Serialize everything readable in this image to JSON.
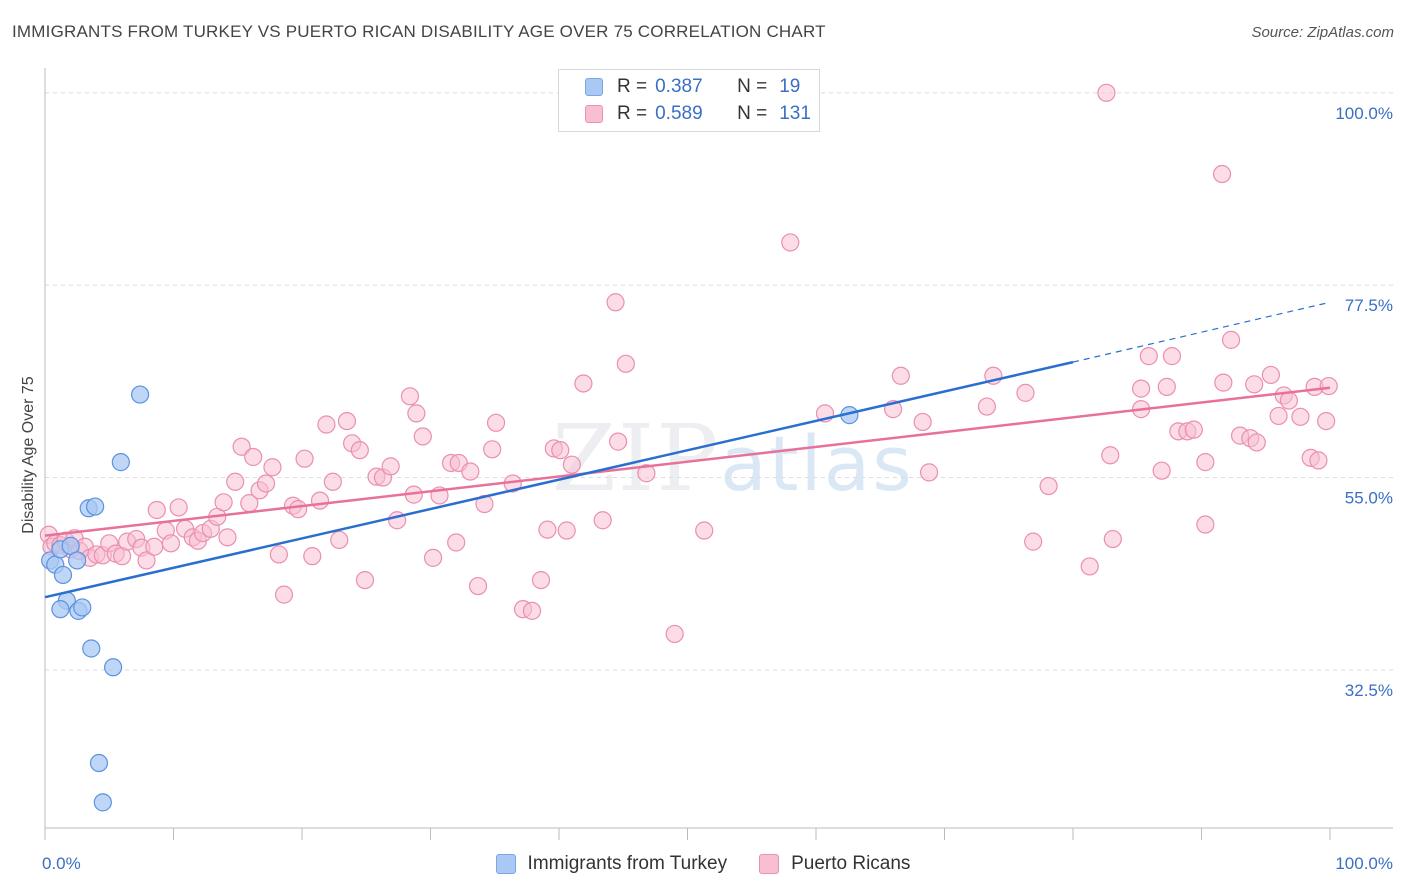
{
  "title": "IMMIGRANTS FROM TURKEY VS PUERTO RICAN DISABILITY AGE OVER 75 CORRELATION CHART",
  "source": "Source: ZipAtlas.com",
  "watermark": {
    "zip": "ZIP",
    "atlas": "atlas"
  },
  "legend": {
    "rows": [
      {
        "r_label": "R =",
        "r_value": "0.387",
        "n_label": "N =",
        "n_value": "19",
        "color": "#a9c8f3",
        "border": "#7aa6e6"
      },
      {
        "r_label": "R =",
        "r_value": "0.589",
        "n_label": "N =",
        "n_value": "131",
        "color": "#f8bfd3",
        "border": "#ef90b1"
      }
    ]
  },
  "bottom_legend": {
    "series1": "Immigrants from Turkey",
    "series2": "Puerto Ricans"
  },
  "colors": {
    "turkey_fill": "#a9c8f3",
    "turkey_stroke": "#5b93e0",
    "turkey_line": "#2a6fcf",
    "pr_fill": "#f8bfd3",
    "pr_stroke": "#ea8fb0",
    "pr_line": "#e8719a",
    "tick_label": "#3a6fc4",
    "grid": "#dcdcdc"
  },
  "chart_data": {
    "type": "scatter",
    "title": "IMMIGRANTS FROM TURKEY VS PUERTO RICAN DISABILITY AGE OVER 75 CORRELATION CHART",
    "xlabel": "",
    "ylabel": "Disability Age Over 75",
    "xlim": [
      0,
      100
    ],
    "ylim": [
      14,
      101.5
    ],
    "x_tick_labels": [
      {
        "value": 0,
        "label": "0.0%"
      },
      {
        "value": 100,
        "label": "100.0%"
      }
    ],
    "y_ticks": [
      {
        "value": 32.5,
        "label": "32.5%"
      },
      {
        "value": 55.0,
        "label": "55.0%"
      },
      {
        "value": 77.5,
        "label": "77.5%"
      },
      {
        "value": 100.0,
        "label": "100.0%"
      }
    ],
    "grid": true,
    "series": [
      {
        "name": "Immigrants from Turkey",
        "points": [
          [
            0.4,
            45.3
          ],
          [
            0.8,
            44.8
          ],
          [
            1.2,
            46.6
          ],
          [
            1.4,
            43.6
          ],
          [
            1.7,
            40.6
          ],
          [
            1.2,
            39.6
          ],
          [
            2.0,
            47.0
          ],
          [
            2.5,
            45.3
          ],
          [
            2.6,
            39.4
          ],
          [
            2.9,
            39.8
          ],
          [
            3.4,
            51.4
          ],
          [
            3.9,
            51.6
          ],
          [
            3.6,
            35.0
          ],
          [
            5.3,
            32.8
          ],
          [
            4.2,
            21.6
          ],
          [
            4.5,
            17.0
          ],
          [
            7.4,
            64.7
          ],
          [
            5.9,
            56.8
          ],
          [
            62.6,
            62.3
          ]
        ],
        "trend": {
          "x0": 0,
          "y0": 41.0,
          "x1": 80.0,
          "y1": 68.5,
          "dashed_to_x": 100,
          "dashed_to_y": 75.5
        }
      },
      {
        "name": "Puerto Ricans",
        "points": [
          [
            0.3,
            48.3
          ],
          [
            0.5,
            46.9
          ],
          [
            0.8,
            47.3
          ],
          [
            1.2,
            47.1
          ],
          [
            1.6,
            47.6
          ],
          [
            2.0,
            46.6
          ],
          [
            2.3,
            47.9
          ],
          [
            2.7,
            46.4
          ],
          [
            3.1,
            46.9
          ],
          [
            3.5,
            45.6
          ],
          [
            4.0,
            46.0
          ],
          [
            4.5,
            45.9
          ],
          [
            5.0,
            47.3
          ],
          [
            5.5,
            46.1
          ],
          [
            6.0,
            45.8
          ],
          [
            6.4,
            47.5
          ],
          [
            7.1,
            47.8
          ],
          [
            7.5,
            46.8
          ],
          [
            7.9,
            45.3
          ],
          [
            8.5,
            46.9
          ],
          [
            8.7,
            51.2
          ],
          [
            9.4,
            48.8
          ],
          [
            9.8,
            47.3
          ],
          [
            10.4,
            51.5
          ],
          [
            10.9,
            49.0
          ],
          [
            11.5,
            48.0
          ],
          [
            11.9,
            47.6
          ],
          [
            12.3,
            48.5
          ],
          [
            12.9,
            49.0
          ],
          [
            13.4,
            50.4
          ],
          [
            13.9,
            52.1
          ],
          [
            14.2,
            48.0
          ],
          [
            14.8,
            54.5
          ],
          [
            15.3,
            58.6
          ],
          [
            15.9,
            52.0
          ],
          [
            16.2,
            57.4
          ],
          [
            16.7,
            53.5
          ],
          [
            17.2,
            54.3
          ],
          [
            17.7,
            56.2
          ],
          [
            18.2,
            46.0
          ],
          [
            18.6,
            41.3
          ],
          [
            19.3,
            51.7
          ],
          [
            19.7,
            51.3
          ],
          [
            20.2,
            57.2
          ],
          [
            20.8,
            45.8
          ],
          [
            21.4,
            52.3
          ],
          [
            21.9,
            61.2
          ],
          [
            22.4,
            54.5
          ],
          [
            22.9,
            47.7
          ],
          [
            23.5,
            61.6
          ],
          [
            23.9,
            59.0
          ],
          [
            24.5,
            58.2
          ],
          [
            24.9,
            43.0
          ],
          [
            25.8,
            55.1
          ],
          [
            26.3,
            55.0
          ],
          [
            26.9,
            56.3
          ],
          [
            27.4,
            50.0
          ],
          [
            28.4,
            64.5
          ],
          [
            28.7,
            53.0
          ],
          [
            28.9,
            62.5
          ],
          [
            29.4,
            59.8
          ],
          [
            30.2,
            45.6
          ],
          [
            30.7,
            52.9
          ],
          [
            31.6,
            56.7
          ],
          [
            32.0,
            47.4
          ],
          [
            32.2,
            56.7
          ],
          [
            33.1,
            55.7
          ],
          [
            33.7,
            42.3
          ],
          [
            34.2,
            51.9
          ],
          [
            34.8,
            58.3
          ],
          [
            35.1,
            61.4
          ],
          [
            36.4,
            54.3
          ],
          [
            37.2,
            39.6
          ],
          [
            37.9,
            39.4
          ],
          [
            38.6,
            43.0
          ],
          [
            39.1,
            48.9
          ],
          [
            39.6,
            58.4
          ],
          [
            40.1,
            58.2
          ],
          [
            40.6,
            48.8
          ],
          [
            41.0,
            56.5
          ],
          [
            41.9,
            66.0
          ],
          [
            43.4,
            50.0
          ],
          [
            44.4,
            75.5
          ],
          [
            44.6,
            59.2
          ],
          [
            45.2,
            68.3
          ],
          [
            46.8,
            55.5
          ],
          [
            49.0,
            36.7
          ],
          [
            51.3,
            48.8
          ],
          [
            58.0,
            82.5
          ],
          [
            60.7,
            62.5
          ],
          [
            66.0,
            63.0
          ],
          [
            66.6,
            66.9
          ],
          [
            68.3,
            61.5
          ],
          [
            68.8,
            55.6
          ],
          [
            73.3,
            63.3
          ],
          [
            73.8,
            66.9
          ],
          [
            76.3,
            64.9
          ],
          [
            76.9,
            47.5
          ],
          [
            78.1,
            54.0
          ],
          [
            81.3,
            44.6
          ],
          [
            82.9,
            57.6
          ],
          [
            83.1,
            47.8
          ],
          [
            82.6,
            100.0
          ],
          [
            85.3,
            65.4
          ],
          [
            85.3,
            63.0
          ],
          [
            85.9,
            69.2
          ],
          [
            86.9,
            55.8
          ],
          [
            87.3,
            65.6
          ],
          [
            87.7,
            69.2
          ],
          [
            88.2,
            60.4
          ],
          [
            88.9,
            60.4
          ],
          [
            89.4,
            60.6
          ],
          [
            90.3,
            56.8
          ],
          [
            90.3,
            49.5
          ],
          [
            91.6,
            90.5
          ],
          [
            91.7,
            66.1
          ],
          [
            92.3,
            71.1
          ],
          [
            93.0,
            59.9
          ],
          [
            93.8,
            59.6
          ],
          [
            94.1,
            65.9
          ],
          [
            94.3,
            59.1
          ],
          [
            95.4,
            67.0
          ],
          [
            96.0,
            62.2
          ],
          [
            96.4,
            64.6
          ],
          [
            96.8,
            64.0
          ],
          [
            97.7,
            62.1
          ],
          [
            98.5,
            57.3
          ],
          [
            99.1,
            57.0
          ],
          [
            99.7,
            61.6
          ],
          [
            98.8,
            65.6
          ],
          [
            99.9,
            65.7
          ]
        ],
        "trend": {
          "x0": 0,
          "y0": 48.2,
          "x1": 100,
          "y1": 65.5
        }
      }
    ]
  }
}
